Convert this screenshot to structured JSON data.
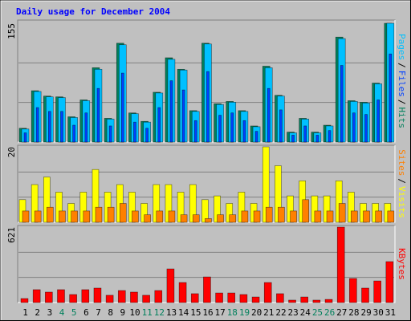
{
  "chart_data": [
    {
      "type": "bar",
      "title": "Daily usage for December 2004",
      "title_color": "#0000ff",
      "ylim": [
        0,
        155
      ],
      "yticks": [
        155
      ],
      "legend_separator": "/",
      "series": [
        {
          "name": "Hits",
          "color": "#00805c",
          "values": [
            18,
            67,
            60,
            59,
            33,
            55,
            97,
            31,
            129,
            38,
            27,
            65,
            110,
            95,
            41,
            129,
            50,
            53,
            41,
            21,
            99,
            61,
            13,
            31,
            13,
            22,
            137,
            54,
            52,
            77,
            155
          ]
        },
        {
          "name": "Files",
          "color": "#0040ff",
          "values": [
            12,
            45,
            40,
            40,
            22,
            38,
            70,
            21,
            90,
            26,
            18,
            45,
            80,
            68,
            28,
            92,
            35,
            38,
            28,
            14,
            70,
            42,
            9,
            21,
            9,
            15,
            100,
            38,
            36,
            55,
            115
          ]
        },
        {
          "name": "Pages",
          "color": "#00c0ff",
          "values": [
            17,
            66,
            59,
            58,
            32,
            54,
            95,
            30,
            127,
            37,
            26,
            64,
            108,
            94,
            40,
            128,
            49,
            52,
            40,
            20,
            97,
            60,
            12,
            30,
            12,
            21,
            135,
            53,
            51,
            76,
            155
          ]
        }
      ]
    },
    {
      "type": "bar",
      "ylim": [
        0,
        20
      ],
      "yticks": [
        20
      ],
      "legend_separator": "/",
      "series": [
        {
          "name": "Visits",
          "color": "#ffff00",
          "values": [
            6,
            10,
            12,
            8,
            5,
            8,
            14,
            8,
            10,
            8,
            5,
            10,
            10,
            8,
            10,
            6,
            7,
            5,
            8,
            5,
            20,
            15,
            7,
            11,
            7,
            7,
            11,
            8,
            5,
            5,
            5
          ]
        },
        {
          "name": "Sites",
          "color": "#ff8000",
          "values": [
            3,
            3,
            4,
            3,
            3,
            3,
            4,
            4,
            5,
            3,
            2,
            3,
            3,
            2,
            2,
            1,
            2,
            2,
            3,
            3,
            4,
            4,
            3,
            6,
            3,
            3,
            5,
            3,
            3,
            3,
            3
          ]
        }
      ]
    },
    {
      "type": "bar",
      "ylim": [
        0,
        621
      ],
      "yticks": [
        621
      ],
      "series": [
        {
          "name": "KBytes",
          "color": "#ff0000",
          "values": [
            33,
            106,
            86,
            106,
            66,
            106,
            119,
            60,
            99,
            86,
            60,
            99,
            277,
            165,
            73,
            211,
            79,
            79,
            66,
            46,
            165,
            73,
            20,
            46,
            20,
            26,
            621,
            198,
            119,
            178,
            337
          ]
        }
      ],
      "categories": [
        "1",
        "2",
        "3",
        "4",
        "5",
        "6",
        "7",
        "8",
        "9",
        "10",
        "11",
        "12",
        "13",
        "14",
        "15",
        "16",
        "17",
        "18",
        "19",
        "20",
        "21",
        "22",
        "23",
        "24",
        "25",
        "26",
        "27",
        "28",
        "29",
        "30",
        "31"
      ],
      "category_colors": [
        "#000000",
        "#000000",
        "#000000",
        "#00805c",
        "#00805c",
        "#000000",
        "#000000",
        "#000000",
        "#000000",
        "#000000",
        "#00805c",
        "#00805c",
        "#000000",
        "#000000",
        "#000000",
        "#000000",
        "#000000",
        "#00805c",
        "#00805c",
        "#000000",
        "#000000",
        "#000000",
        "#000000",
        "#000000",
        "#00805c",
        "#00805c",
        "#000000",
        "#000000",
        "#000000",
        "#000000",
        "#000000"
      ]
    }
  ]
}
